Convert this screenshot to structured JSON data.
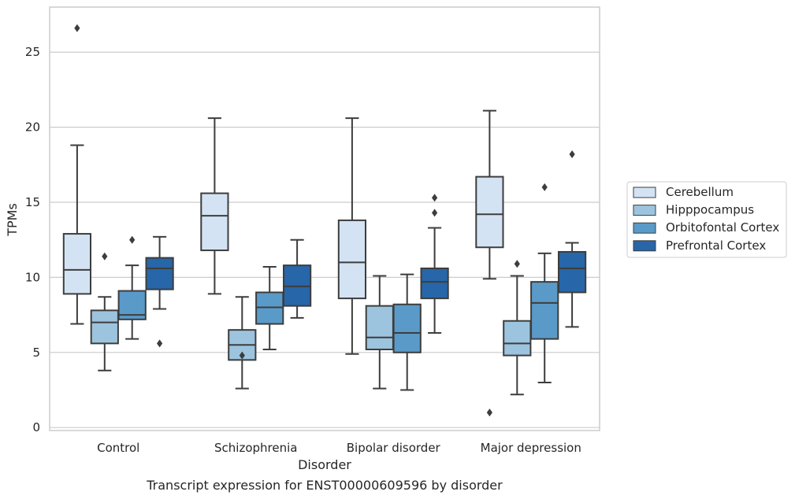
{
  "caption": "Transcript expression for ENST00000609596 by disorder",
  "chart_data": {
    "type": "box",
    "xlabel": "Disorder",
    "ylabel": "TPMs",
    "ylim": [
      -0.2,
      28
    ],
    "yticks": [
      0,
      5,
      10,
      15,
      20,
      25
    ],
    "grid": "horizontal",
    "legend_position": "right",
    "categories": [
      "Control",
      "Schizophrenia",
      "Bipolar disorder",
      "Major depression"
    ],
    "series": [
      {
        "name": "Cerebellum",
        "color": "#d4e3f3",
        "boxes": [
          {
            "whislo": 6.9,
            "q1": 8.9,
            "med": 10.5,
            "q3": 12.9,
            "whishi": 18.8,
            "fliers": [
              26.6
            ]
          },
          {
            "whislo": 8.9,
            "q1": 11.8,
            "med": 14.1,
            "q3": 15.6,
            "whishi": 20.6,
            "fliers": []
          },
          {
            "whislo": 4.9,
            "q1": 8.6,
            "med": 11.0,
            "q3": 13.8,
            "whishi": 20.6,
            "fliers": []
          },
          {
            "whislo": 9.9,
            "q1": 12.0,
            "med": 14.2,
            "q3": 16.7,
            "whishi": 21.1,
            "fliers": [
              1.0
            ]
          }
        ]
      },
      {
        "name": "Hipppocampus",
        "color": "#9dc4de",
        "boxes": [
          {
            "whislo": 3.8,
            "q1": 5.6,
            "med": 7.0,
            "q3": 7.8,
            "whishi": 8.7,
            "fliers": [
              11.4
            ]
          },
          {
            "whislo": 2.6,
            "q1": 4.5,
            "med": 5.5,
            "q3": 6.5,
            "whishi": 8.7,
            "fliers": [
              4.8
            ]
          },
          {
            "whislo": 2.6,
            "q1": 5.2,
            "med": 6.0,
            "q3": 8.1,
            "whishi": 10.1,
            "fliers": []
          },
          {
            "whislo": 2.2,
            "q1": 4.8,
            "med": 5.6,
            "q3": 7.1,
            "whishi": 10.1,
            "fliers": [
              10.9
            ]
          }
        ]
      },
      {
        "name": "Orbitofontal Cortex",
        "color": "#5a9ac8",
        "boxes": [
          {
            "whislo": 5.9,
            "q1": 7.2,
            "med": 7.5,
            "q3": 9.1,
            "whishi": 10.8,
            "fliers": [
              12.5
            ]
          },
          {
            "whislo": 5.2,
            "q1": 6.9,
            "med": 8.0,
            "q3": 9.0,
            "whishi": 10.7,
            "fliers": []
          },
          {
            "whislo": 2.5,
            "q1": 5.0,
            "med": 6.3,
            "q3": 8.2,
            "whishi": 10.2,
            "fliers": []
          },
          {
            "whislo": 3.0,
            "q1": 5.9,
            "med": 8.3,
            "q3": 9.7,
            "whishi": 11.6,
            "fliers": [
              16.0
            ]
          }
        ]
      },
      {
        "name": "Prefrontal Cortex",
        "color": "#2766a8",
        "boxes": [
          {
            "whislo": 7.9,
            "q1": 9.2,
            "med": 10.6,
            "q3": 11.3,
            "whishi": 12.7,
            "fliers": [
              5.6
            ]
          },
          {
            "whislo": 7.3,
            "q1": 8.1,
            "med": 9.4,
            "q3": 10.8,
            "whishi": 12.5,
            "fliers": []
          },
          {
            "whislo": 6.3,
            "q1": 8.6,
            "med": 9.7,
            "q3": 10.6,
            "whishi": 13.3,
            "fliers": [
              14.3,
              15.3
            ]
          },
          {
            "whislo": 6.7,
            "q1": 9.0,
            "med": 10.6,
            "q3": 11.7,
            "whishi": 12.3,
            "fliers": [
              18.2
            ]
          }
        ]
      }
    ]
  }
}
